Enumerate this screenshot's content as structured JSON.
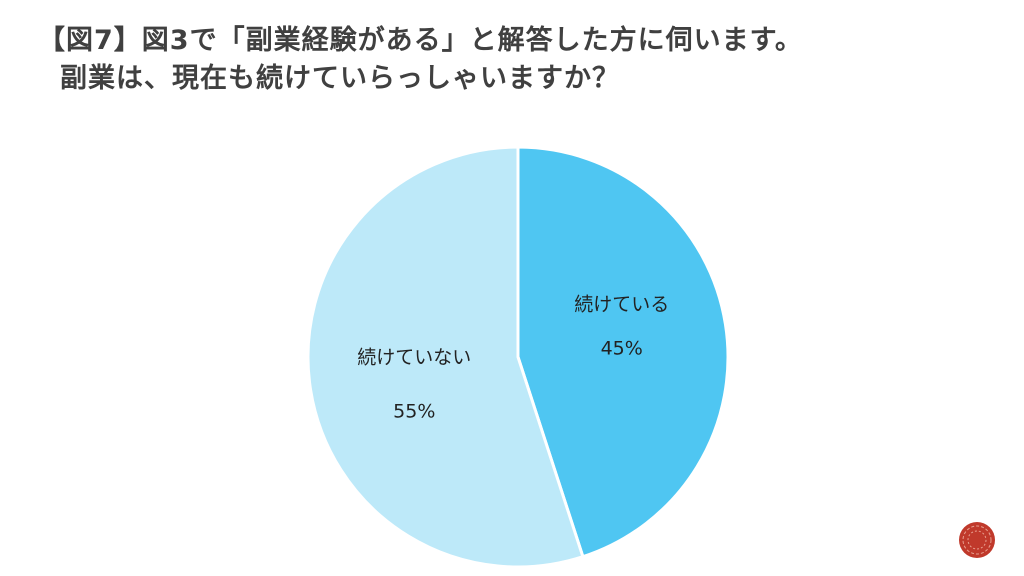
{
  "slide": {
    "title_line1": "【図7】図3で「副業経験がある」と解答した方に伺います。",
    "title_line2": "副業は、現在も続けていらっしゃいますか？"
  },
  "chart_data": {
    "type": "pie",
    "title": "",
    "slices": [
      {
        "label": "続けている",
        "value": 45,
        "value_label": "45%",
        "color": "#4fc6f2"
      },
      {
        "label": "続けていない",
        "value": 55,
        "value_label": "55%",
        "color": "#bde9f9"
      }
    ],
    "start_angle": "12 o'clock",
    "direction": "clockwise",
    "legend": "none"
  },
  "badge": {
    "color": "#c0392b",
    "icon": "decorative-circle-icon"
  }
}
